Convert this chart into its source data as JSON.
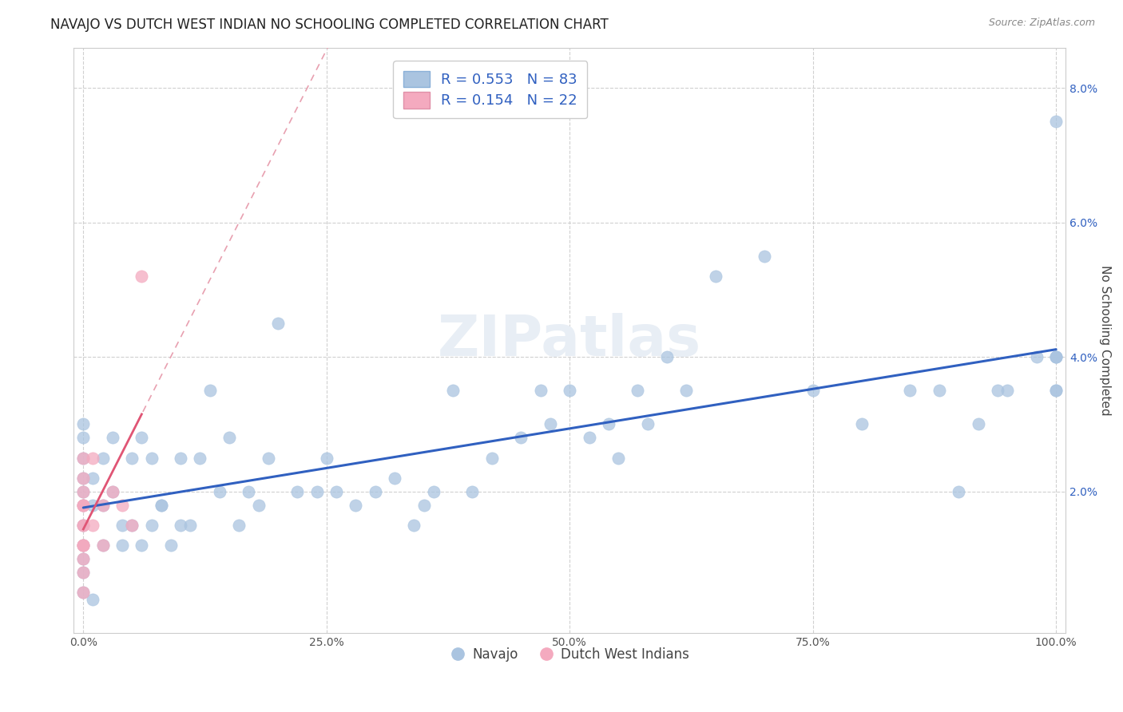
{
  "title": "NAVAJO VS DUTCH WEST INDIAN NO SCHOOLING COMPLETED CORRELATION CHART",
  "source_text": "Source: ZipAtlas.com",
  "ylabel": "No Schooling Completed",
  "xlabel": "",
  "legend_bottom": [
    "Navajo",
    "Dutch West Indians"
  ],
  "navajo_R": 0.553,
  "navajo_N": 83,
  "dutch_R": 0.154,
  "dutch_N": 22,
  "navajo_color": "#aac4e0",
  "dutch_color": "#f4aabf",
  "navajo_line_color": "#3060c0",
  "dutch_line_color": "#e05575",
  "dutch_dash_color": "#e8a0b0",
  "watermark_color": "#e8eef5",
  "navajo_x": [
    0,
    0,
    0,
    0,
    0,
    0,
    0,
    0,
    0,
    0,
    0,
    1,
    1,
    1,
    2,
    2,
    2,
    3,
    3,
    4,
    4,
    5,
    5,
    6,
    6,
    7,
    7,
    8,
    8,
    9,
    10,
    10,
    11,
    12,
    13,
    14,
    15,
    16,
    17,
    18,
    19,
    20,
    22,
    24,
    25,
    26,
    28,
    30,
    32,
    34,
    35,
    36,
    38,
    40,
    42,
    45,
    47,
    48,
    50,
    52,
    54,
    55,
    57,
    58,
    60,
    62,
    65,
    70,
    75,
    80,
    85,
    88,
    90,
    92,
    94,
    95,
    98,
    100,
    100,
    100,
    100,
    100,
    100
  ],
  "navajo_y": [
    1.2,
    1.5,
    1.8,
    2.0,
    2.2,
    2.5,
    2.8,
    3.0,
    1.0,
    0.8,
    0.5,
    1.8,
    0.4,
    2.2,
    1.8,
    2.5,
    1.2,
    2.0,
    2.8,
    1.5,
    1.2,
    1.5,
    2.5,
    1.2,
    2.8,
    2.5,
    1.5,
    1.8,
    1.8,
    1.2,
    1.5,
    2.5,
    1.5,
    2.5,
    3.5,
    2.0,
    2.8,
    1.5,
    2.0,
    1.8,
    2.5,
    4.5,
    2.0,
    2.0,
    2.5,
    2.0,
    1.8,
    2.0,
    2.2,
    1.5,
    1.8,
    2.0,
    3.5,
    2.0,
    2.5,
    2.8,
    3.5,
    3.0,
    3.5,
    2.8,
    3.0,
    2.5,
    3.5,
    3.0,
    4.0,
    3.5,
    5.2,
    5.5,
    3.5,
    3.0,
    3.5,
    3.5,
    2.0,
    3.0,
    3.5,
    3.5,
    4.0,
    4.0,
    3.5,
    3.5,
    4.0,
    4.0,
    7.5
  ],
  "dutch_x": [
    0,
    0,
    0,
    0,
    0,
    0,
    0,
    0,
    0,
    0,
    0,
    0,
    0,
    0,
    1,
    1,
    2,
    2,
    3,
    4,
    5,
    6
  ],
  "dutch_y": [
    1.8,
    1.5,
    1.2,
    1.0,
    1.8,
    1.2,
    0.8,
    0.5,
    2.0,
    2.2,
    2.5,
    1.5,
    1.8,
    1.2,
    1.5,
    2.5,
    1.8,
    1.2,
    2.0,
    1.8,
    1.5,
    5.2
  ],
  "xlim_min": -1,
  "xlim_max": 101,
  "ylim_min": -0.001,
  "ylim_max": 0.086,
  "yticks": [
    0.02,
    0.04,
    0.06,
    0.08
  ],
  "yticklabels": [
    "2.0%",
    "4.0%",
    "6.0%",
    "8.0%"
  ],
  "xticks": [
    0,
    25,
    50,
    75,
    100
  ],
  "xticklabels": [
    "0.0%",
    "25.0%",
    "50.0%",
    "75.0%",
    "100.0%"
  ],
  "title_fontsize": 12,
  "tick_fontsize": 10,
  "ylabel_fontsize": 11
}
